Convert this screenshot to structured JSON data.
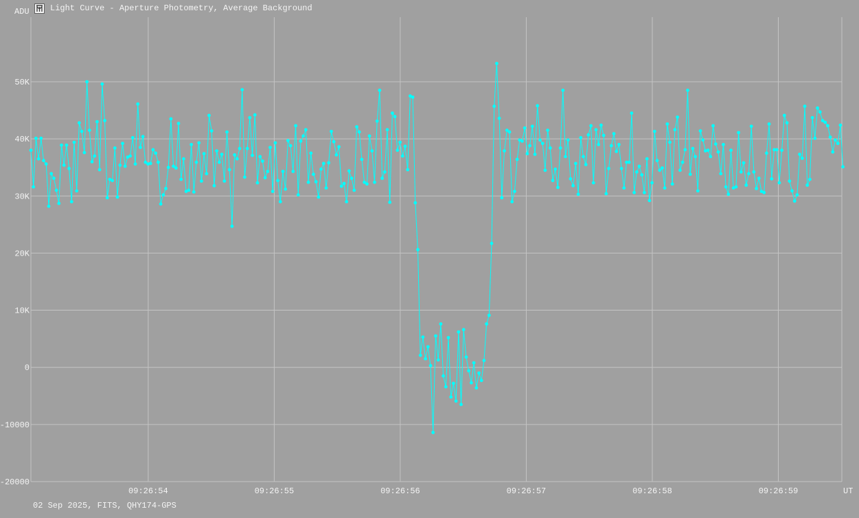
{
  "window": {
    "title": "Light Curve - Aperture Photometry, Average Background",
    "icon": "light-curve-app-icon"
  },
  "footer": {
    "info": "02 Sep 2025, FITS, QHY174-GPS"
  },
  "colors": {
    "background": "#a0a0a0",
    "grid": "#c4c4c4",
    "series": "#00ffff",
    "text": "#f4f4f4"
  },
  "chart_data": {
    "type": "line",
    "title": "Light Curve - Aperture Photometry, Average Background",
    "ylabel": "ADU",
    "xlabel": "UT",
    "grid": true,
    "markers": true,
    "ylim": [
      -20000,
      61300
    ],
    "xlim": [
      "09:26:53.069",
      "09:26:59.504"
    ],
    "y_ticks": [
      {
        "value": 50000,
        "label": "50K"
      },
      {
        "value": 40000,
        "label": "40K"
      },
      {
        "value": 30000,
        "label": "30K"
      },
      {
        "value": 20000,
        "label": "20K"
      },
      {
        "value": 10000,
        "label": "10K"
      },
      {
        "value": 0,
        "label": "0"
      },
      {
        "value": -10000,
        "label": "-10000"
      },
      {
        "value": -20000,
        "label": "-20000"
      }
    ],
    "x_ticks": [
      {
        "value": "09:26:54",
        "label": "09:26:54"
      },
      {
        "value": "09:26:55",
        "label": "09:26:55"
      },
      {
        "value": "09:26:56",
        "label": "09:26:56"
      },
      {
        "value": "09:26:57",
        "label": "09:26:57"
      },
      {
        "value": "09:26:58",
        "label": "09:26:58"
      },
      {
        "value": "09:26:59",
        "label": "09:26:59"
      }
    ],
    "x_start": "09:26:53.069",
    "x_interval_s": 0.0202,
    "values": [
      38000,
      31600,
      40100,
      36500,
      40100,
      36200,
      35600,
      28200,
      33900,
      33100,
      31000,
      28700,
      38900,
      35400,
      38900,
      34800,
      29000,
      39400,
      30900,
      42800,
      41300,
      37600,
      50000,
      41500,
      36000,
      37000,
      43000,
      34600,
      49600,
      43200,
      29700,
      32900,
      32700,
      38400,
      29800,
      35400,
      39200,
      35200,
      36800,
      37000,
      40200,
      35600,
      46100,
      38500,
      40400,
      35900,
      35600,
      35700,
      38100,
      37500,
      35900,
      28600,
      30200,
      31300,
      35000,
      43500,
      35200,
      34900,
      42700,
      32900,
      36500,
      30800,
      31000,
      39000,
      30700,
      35900,
      39300,
      32600,
      37400,
      33900,
      44100,
      41400,
      31800,
      37900,
      35900,
      37300,
      32600,
      41200,
      34600,
      24700,
      37200,
      36500,
      38300,
      48600,
      33300,
      38300,
      43700,
      37100,
      44200,
      32300,
      36900,
      36100,
      33200,
      34300,
      38500,
      30800,
      39300,
      32700,
      29000,
      34300,
      31200,
      39700,
      38800,
      34300,
      42300,
      30200,
      39600,
      40500,
      41600,
      32400,
      37500,
      33800,
      32500,
      29800,
      34700,
      35700,
      31400,
      35800,
      41300,
      39500,
      37200,
      38600,
      31700,
      32200,
      29000,
      34400,
      33100,
      31000,
      42100,
      41200,
      36400,
      32400,
      32100,
      40500,
      37900,
      32400,
      43100,
      48500,
      33100,
      34200,
      41600,
      28900,
      44500,
      43900,
      38000,
      39400,
      37000,
      38700,
      34600,
      47500,
      47300,
      28800,
      20600,
      2100,
      5300,
      1500,
      3600,
      300,
      -11400,
      5500,
      1300,
      7600,
      -1500,
      -3400,
      5200,
      -5200,
      -2800,
      -5900,
      6200,
      -6500,
      6600,
      1800,
      -600,
      -2700,
      800,
      -3600,
      -1000,
      -2300,
      1200,
      7600,
      9100,
      21700,
      45700,
      53200,
      43600,
      29700,
      37900,
      41500,
      41200,
      29000,
      30800,
      36400,
      39800,
      39600,
      41900,
      37400,
      38800,
      42200,
      37300,
      45800,
      39800,
      39200,
      34500,
      41500,
      38400,
      32700,
      34700,
      31500,
      38400,
      48500,
      36900,
      39800,
      33000,
      31800,
      35700,
      30300,
      40200,
      36900,
      35500,
      40700,
      42300,
      32300,
      41600,
      39000,
      42400,
      40600,
      30400,
      34800,
      38800,
      40900,
      37800,
      39000,
      34800,
      31400,
      35900,
      35900,
      44500,
      30600,
      34200,
      35200,
      33700,
      30600,
      36500,
      29200,
      32300,
      41300,
      36200,
      34500,
      34900,
      31400,
      42600,
      39400,
      32100,
      41600,
      43800,
      34500,
      35900,
      38100,
      48500,
      33800,
      38300,
      36900,
      30900,
      41400,
      39800,
      37900,
      38000,
      36900,
      42300,
      39100,
      37700,
      33900,
      39000,
      31600,
      30300,
      38000,
      31400,
      31600,
      41100,
      34200,
      35800,
      31900,
      33900,
      42200,
      34200,
      31300,
      33100,
      30800,
      30600,
      37500,
      42600,
      33000,
      38100,
      38100,
      32300,
      38000,
      44100,
      42800,
      32600,
      30900,
      29100,
      30200,
      37300,
      36600,
      45700,
      31900,
      32900,
      43700,
      40100,
      45400,
      44700,
      43200,
      42900,
      42300,
      40300,
      37700,
      39800,
      39200,
      42400,
      35100
    ]
  }
}
